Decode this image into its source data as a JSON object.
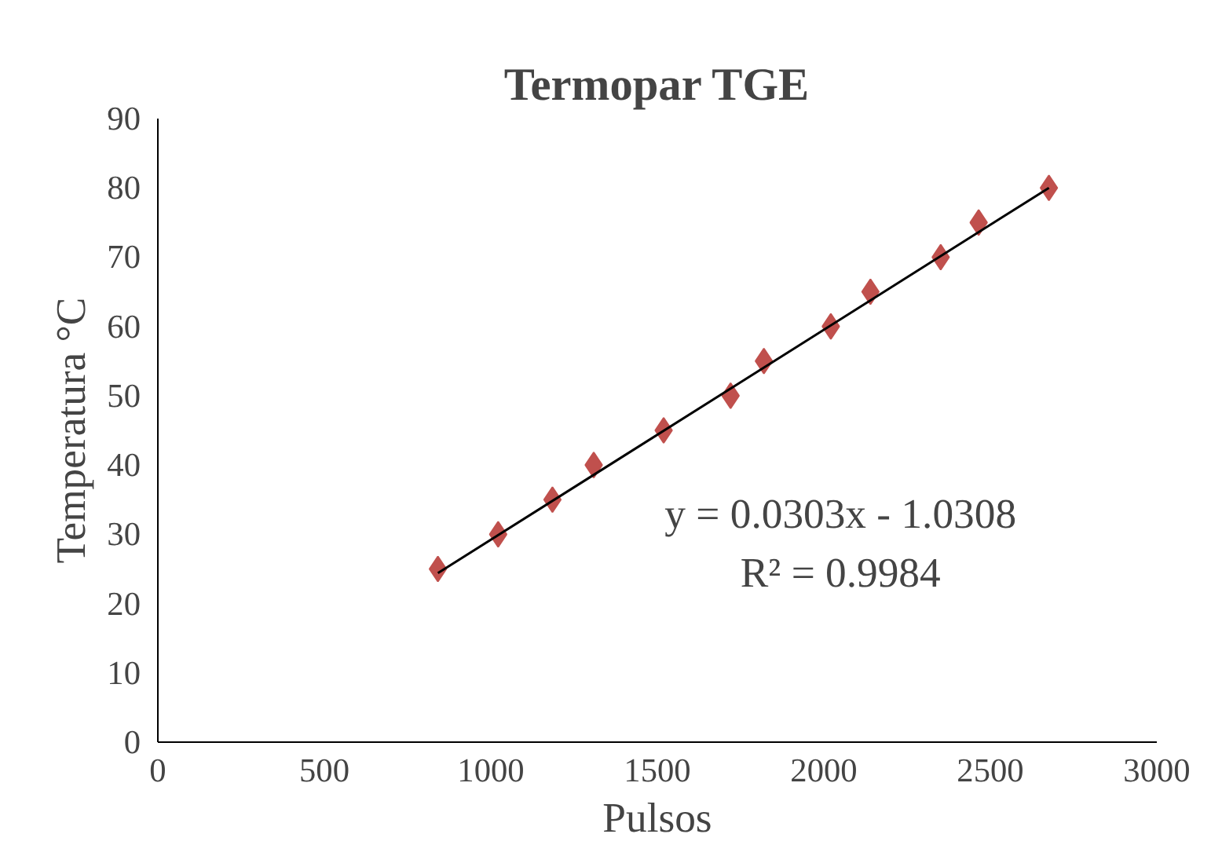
{
  "chart_data": {
    "type": "scatter",
    "title": "Termopar TGE",
    "xlabel": "Pulsos",
    "ylabel": "Temperatura °C",
    "xlim": [
      0,
      3000
    ],
    "xticks": [
      0,
      500,
      1000,
      1500,
      2000,
      2500,
      3000
    ],
    "ylim": [
      0,
      90
    ],
    "yticks": [
      0,
      10,
      20,
      30,
      40,
      50,
      60,
      70,
      80,
      90
    ],
    "annotations": [
      "y = 0.0303x - 1.0308",
      "R² = 0.9984"
    ],
    "series": [
      {
        "marker": "diamond",
        "color": "#c0504d",
        "x": [
          841,
          1022,
          1185,
          1309,
          1519,
          1720,
          1820,
          2021,
          2140,
          2351,
          2465,
          2676
        ],
        "values": [
          25,
          30,
          35,
          40,
          45,
          50,
          55,
          60,
          65,
          70,
          75,
          80
        ]
      },
      {
        "type": "line",
        "marker": "none",
        "color": "#000000",
        "x": [
          841,
          2676
        ],
        "values": [
          24.4,
          80
        ]
      }
    ]
  }
}
